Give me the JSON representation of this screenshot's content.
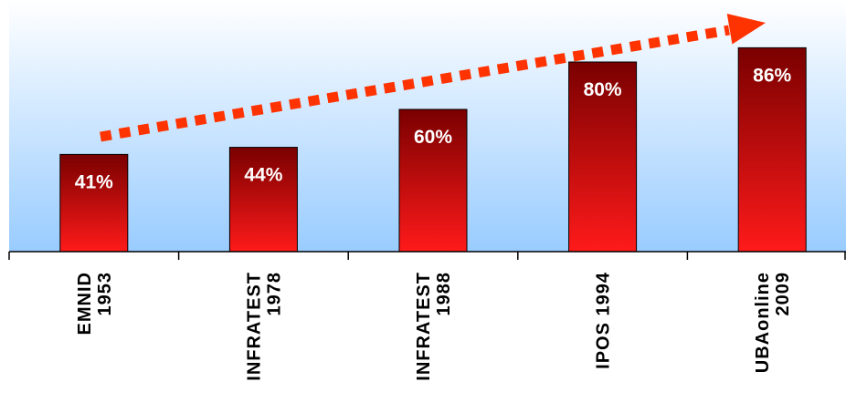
{
  "chart_data": {
    "type": "bar",
    "categories": [
      [
        "EMNID",
        "1953"
      ],
      [
        "INFRATEST",
        "1978"
      ],
      [
        "INFRATEST",
        "1988"
      ],
      [
        "IPOS 1994"
      ],
      [
        "UBAonline",
        "2009"
      ]
    ],
    "values": [
      41,
      44,
      60,
      80,
      86
    ],
    "value_labels": [
      "41%",
      "44%",
      "60%",
      "80%",
      "86%"
    ],
    "ylim": [
      0,
      100
    ],
    "grid": false,
    "legend": "none",
    "annotations": [
      {
        "type": "trend-arrow",
        "style": "dashed",
        "direction": "up-right"
      }
    ],
    "colors": {
      "bar_top": "#7a0000",
      "bar_bottom": "#ff1a1a",
      "bar_label": "#ffffff",
      "plot_bg_top": "#ffffff",
      "plot_bg_bottom": "#99ccff",
      "arrow": "#ff3300",
      "axis": "#000000",
      "tick_label": "#000000"
    }
  }
}
